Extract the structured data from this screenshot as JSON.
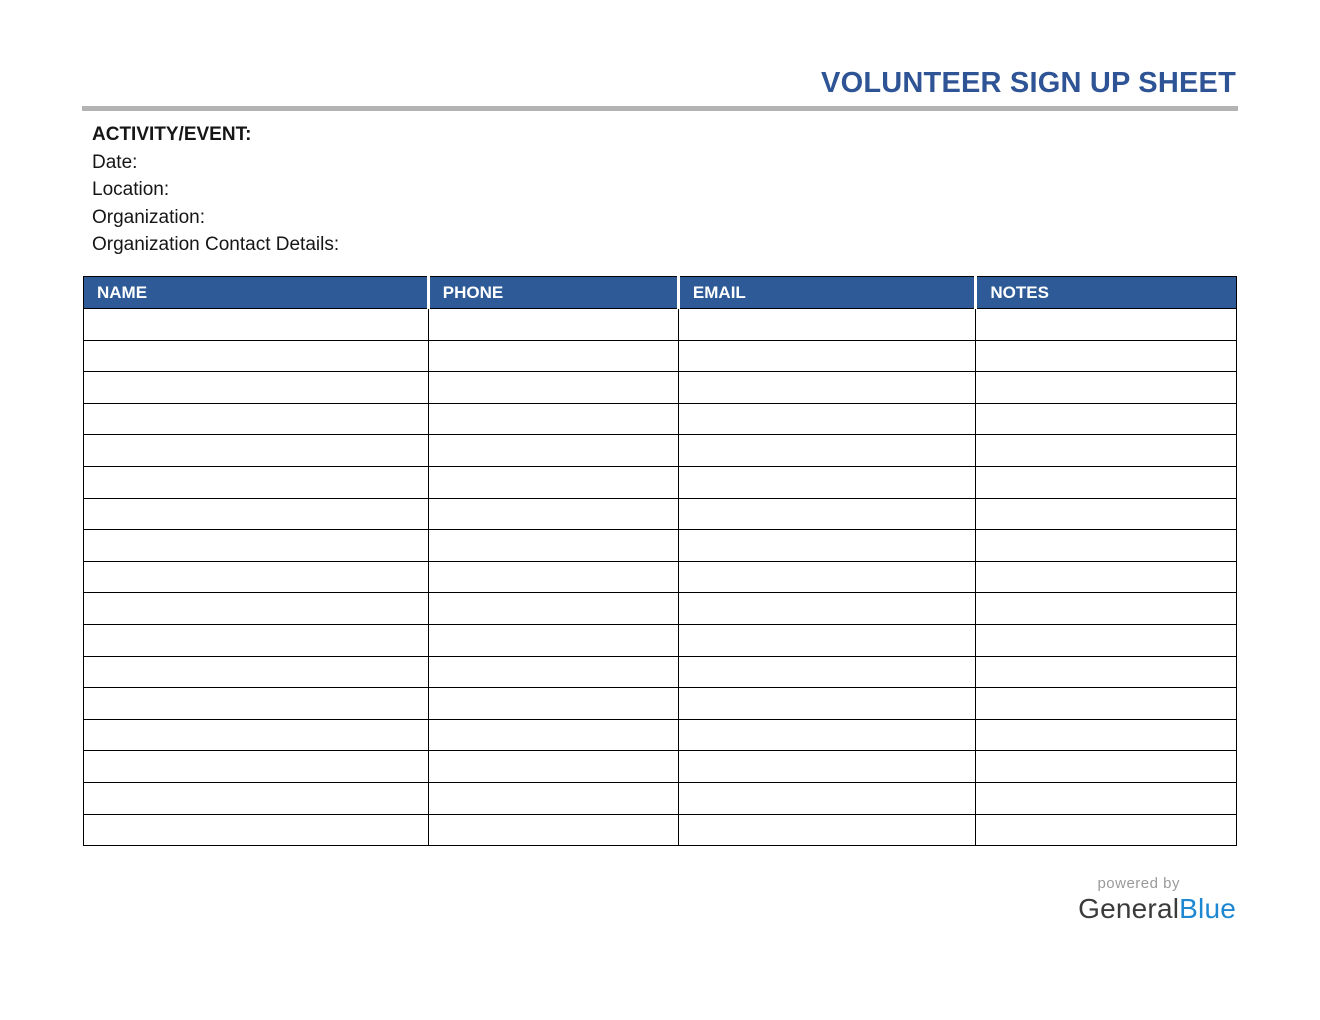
{
  "title": "VOLUNTEER SIGN UP SHEET",
  "info": {
    "activity_label": "ACTIVITY/EVENT:",
    "fields": [
      "Date:",
      "Location:",
      "Organization:",
      "Organization Contact Details:"
    ]
  },
  "table": {
    "columns": [
      {
        "label": "NAME",
        "width": "29.9%"
      },
      {
        "label": "PHONE",
        "width": "21.7%"
      },
      {
        "label": "EMAIL",
        "width": "25.8%"
      },
      {
        "label": "NOTES",
        "width": "22.6%"
      }
    ],
    "empty_rows": 17
  },
  "footer": {
    "powered_by": "powered by",
    "brand_general": "General",
    "brand_blue": "Blue"
  },
  "colors": {
    "title_blue": "#2F5496",
    "header_blue": "#2E5B97",
    "divider_gray": "#B3B3B3",
    "border_black": "#000000",
    "powered_gray": "#9A9A9A",
    "brand_dark": "#3B3B3B",
    "brand_blue": "#1E87D2"
  }
}
